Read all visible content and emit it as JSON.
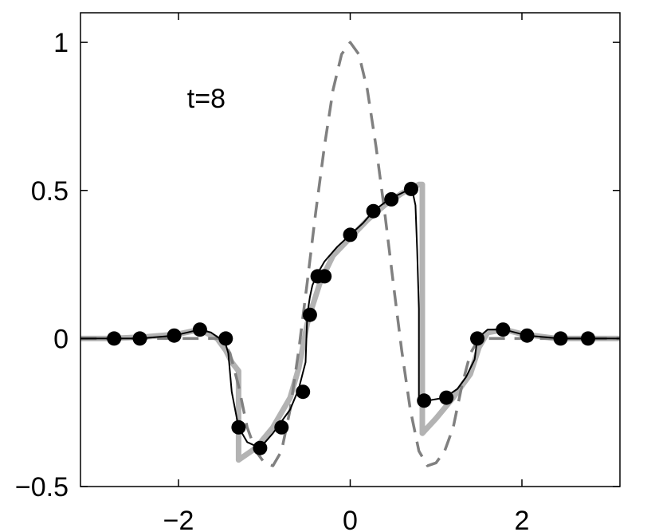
{
  "chart_data": {
    "type": "line",
    "title": "",
    "xlabel": "",
    "ylabel": "",
    "xlim": [
      -3.1416,
      3.1416
    ],
    "ylim": [
      -0.5,
      1.1
    ],
    "x_ticks": [
      -2,
      0,
      2
    ],
    "x_tick_labels": [
      "−2",
      "0",
      "2"
    ],
    "y_ticks": [
      -0.5,
      0,
      0.5,
      1
    ],
    "y_tick_labels": [
      "−0.5",
      "0",
      "0.5",
      "1"
    ],
    "grid": false,
    "annotations": [
      {
        "text": "t=8",
        "x": -1.9,
        "y": 0.78
      }
    ],
    "colors": {
      "reference": "#b3b3b3",
      "initial": "#808080",
      "numerical": "#000000",
      "markers": "#000000"
    },
    "series": [
      {
        "style": "solid-thick-gray",
        "x": [
          -3.14,
          -2.8,
          -2.4,
          -2.0,
          -1.75,
          -1.55,
          -1.45,
          -1.38,
          -1.3,
          -1.3,
          -1.1,
          -0.9,
          -0.7,
          -0.6,
          -0.5,
          -0.45,
          -0.35,
          -0.2,
          0.0,
          0.2,
          0.4,
          0.6,
          0.8,
          0.84,
          0.84,
          1.0,
          1.2,
          1.4,
          1.5,
          1.6,
          1.8,
          2.0,
          2.4,
          2.8,
          3.14
        ],
        "y": [
          0.0,
          0.0,
          0.005,
          0.015,
          0.03,
          0.0,
          -0.04,
          -0.08,
          -0.11,
          -0.41,
          -0.37,
          -0.3,
          -0.2,
          -0.1,
          0.05,
          0.1,
          0.19,
          0.28,
          0.34,
          0.4,
          0.45,
          0.49,
          0.52,
          0.52,
          -0.32,
          -0.27,
          -0.2,
          -0.12,
          -0.03,
          0.02,
          0.03,
          0.015,
          0.0,
          0.0,
          0.0
        ]
      },
      {
        "style": "dashed-gray",
        "x": [
          -3.14,
          -1.5,
          -1.4,
          -1.3,
          -1.2,
          -1.1,
          -1.0,
          -0.9,
          -0.8,
          -0.7,
          -0.6,
          -0.5,
          -0.4,
          -0.3,
          -0.2,
          -0.1,
          0.0,
          0.1,
          0.2,
          0.3,
          0.4,
          0.5,
          0.6,
          0.7,
          0.8,
          0.9,
          1.0,
          1.1,
          1.2,
          1.3,
          1.4,
          1.5,
          3.14
        ],
        "y": [
          0.0,
          0.0,
          -0.05,
          -0.16,
          -0.3,
          -0.38,
          -0.42,
          -0.43,
          -0.38,
          -0.24,
          -0.04,
          0.19,
          0.43,
          0.65,
          0.84,
          0.96,
          1.0,
          0.96,
          0.84,
          0.65,
          0.43,
          0.19,
          -0.04,
          -0.24,
          -0.38,
          -0.43,
          -0.42,
          -0.38,
          -0.3,
          -0.16,
          -0.05,
          0.0,
          0.0
        ]
      },
      {
        "style": "solid-thin-black",
        "x": [
          -3.14,
          -2.75,
          -2.45,
          -2.05,
          -1.75,
          -1.62,
          -1.52,
          -1.45,
          -1.42,
          -1.38,
          -1.3,
          -1.2,
          -1.05,
          -0.9,
          -0.7,
          -0.6,
          -0.52,
          -0.5,
          -0.47,
          -0.44,
          -0.38,
          -0.3,
          -0.15,
          0.0,
          0.15,
          0.27,
          0.45,
          0.7,
          0.73,
          0.76,
          0.78,
          0.8,
          0.8,
          0.9,
          1.1,
          1.25,
          1.35,
          1.45,
          1.48,
          1.6,
          1.79,
          2.06,
          2.45,
          2.77,
          3.14
        ],
        "y": [
          0.0,
          0.0,
          0.0,
          0.01,
          0.03,
          0.02,
          0.0,
          -0.02,
          -0.05,
          -0.18,
          -0.3,
          -0.35,
          -0.37,
          -0.32,
          -0.24,
          -0.17,
          -0.08,
          0.08,
          0.14,
          0.18,
          0.22,
          0.26,
          0.31,
          0.35,
          0.39,
          0.43,
          0.47,
          0.505,
          0.49,
          0.45,
          0.3,
          0.1,
          -0.21,
          -0.21,
          -0.2,
          -0.17,
          -0.13,
          -0.07,
          0.0,
          0.03,
          0.03,
          0.01,
          0.0,
          0.0,
          0.0
        ]
      },
      {
        "style": "markers-black",
        "x": [
          -2.75,
          -2.45,
          -2.05,
          -1.75,
          -1.45,
          -1.3,
          -1.05,
          -0.8,
          -0.55,
          -0.47,
          -0.38,
          -0.3,
          0.0,
          0.27,
          0.48,
          0.71,
          0.86,
          1.12,
          1.48,
          1.78,
          2.06,
          2.45,
          2.77
        ],
        "y": [
          0.0,
          0.0,
          0.01,
          0.03,
          0.0,
          -0.3,
          -0.37,
          -0.3,
          -0.18,
          0.08,
          0.21,
          0.21,
          0.35,
          0.43,
          0.47,
          0.505,
          -0.21,
          -0.2,
          0.0,
          0.03,
          0.01,
          0.0,
          0.0
        ]
      }
    ]
  }
}
